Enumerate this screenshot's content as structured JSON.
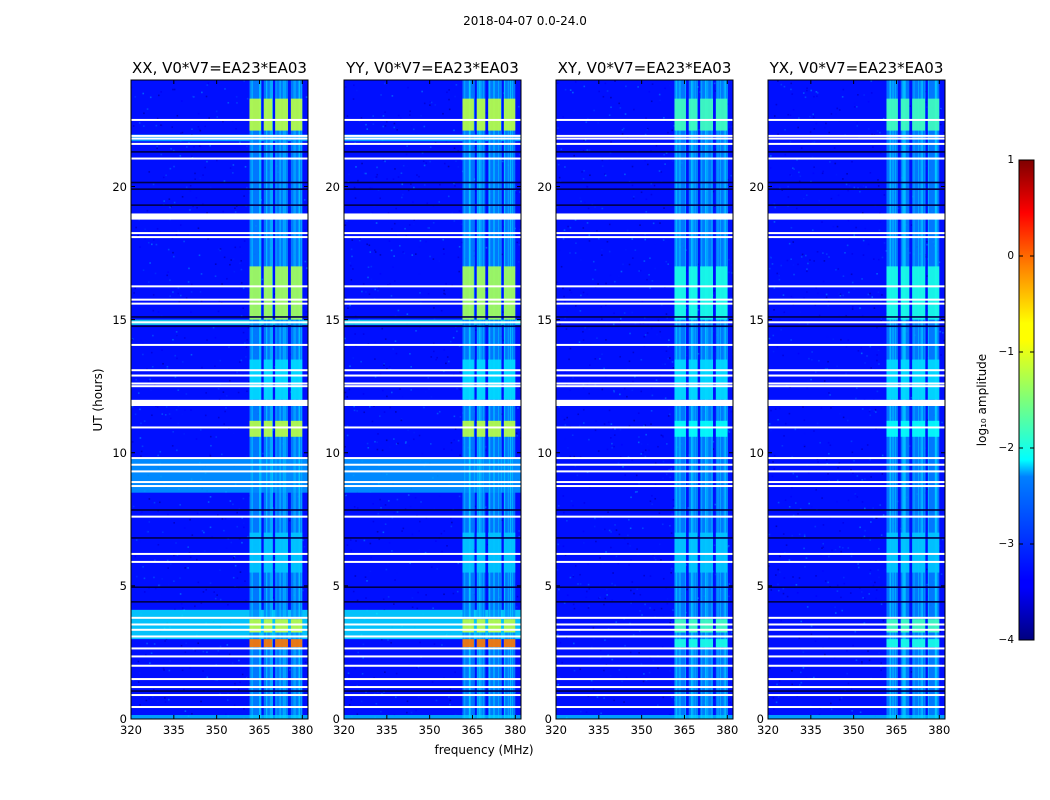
{
  "figure_title": "2018-04-07 0.0-24.0",
  "chart_data": {
    "type": "heatmap",
    "title": "2018-04-07 0.0-24.0",
    "xlabel": "frequency (MHz)",
    "ylabel": "UT (hours)",
    "xlim": [
      320,
      382
    ],
    "ylim": [
      0,
      24
    ],
    "x_ticks": [
      320,
      335,
      350,
      365,
      380
    ],
    "x_tick_labels": [
      "320",
      "335",
      "350",
      "365",
      "380"
    ],
    "y_ticks": [
      0,
      5,
      10,
      15,
      20
    ],
    "y_tick_labels": [
      "0",
      "5",
      "10",
      "15",
      "20"
    ],
    "colorbar": {
      "label": "log₁₀ amplitude",
      "range": [
        -4,
        1
      ],
      "ticks": [
        1,
        0,
        -1,
        -2,
        -3,
        -4
      ],
      "tick_labels": [
        "1",
        "0",
        "−1",
        "−2",
        "−3",
        "−4"
      ],
      "colormap": "jet"
    },
    "panels": [
      {
        "name": "XX",
        "title": "XX, V0*V7=EA23*EA03",
        "diag": true
      },
      {
        "name": "YY",
        "title": "YY, V0*V7=EA23*EA03",
        "diag": true
      },
      {
        "name": "XY",
        "title": "XY, V0*V7=EA23*EA03",
        "diag": false
      },
      {
        "name": "YX",
        "title": "YX, V0*V7=EA23*EA03",
        "diag": false
      }
    ],
    "background_log_amplitude": -3.3,
    "bright_band_mhz": [
      [
        361.5,
        365.5
      ],
      [
        366.5,
        369.5
      ],
      [
        370.5,
        375
      ],
      [
        376,
        380
      ]
    ],
    "flagged_gaps_hours": [
      0.45,
      0.9,
      1.2,
      1.5,
      2.0,
      2.35,
      2.65,
      3.1,
      3.35,
      3.55,
      3.8,
      5.9,
      6.2,
      7.6,
      8.75,
      8.9,
      9.3,
      9.55,
      9.8,
      10.95,
      11.85,
      11.95,
      12.5,
      12.6,
      12.9,
      13.1,
      14.05,
      14.9,
      15.6,
      15.75,
      16.25,
      18.1,
      18.25,
      18.85,
      18.95,
      21.05,
      21.6,
      21.8,
      21.9,
      22.5
    ],
    "dark_rows_hours": [
      1.05,
      4.4,
      4.95,
      6.8,
      7.85,
      14.75,
      15.1,
      19.3,
      19.9,
      20.15,
      21.3
    ],
    "bright_intervals": [
      {
        "t": [
          0.0,
          0.15
        ],
        "level": -2.3,
        "where": "all"
      },
      {
        "t": [
          2.7,
          3.0
        ],
        "level": -2.0,
        "diag_level": -0.2
      },
      {
        "t": [
          3.25,
          3.75
        ],
        "level": -1.8,
        "diag_level": -1.2
      },
      {
        "t": [
          5.5,
          7.0
        ],
        "level": -2.4
      },
      {
        "t": [
          10.6,
          11.2
        ],
        "level": -2.1,
        "diag_level": -1.2
      },
      {
        "t": [
          12.0,
          13.5
        ],
        "level": -2.3
      },
      {
        "t": [
          15.0,
          17.0
        ],
        "level": -2.0,
        "diag_level": -1.3
      },
      {
        "t": [
          22.1,
          23.3
        ],
        "level": -1.8,
        "diag_level": -1.2
      }
    ],
    "wide_rfi_intervals": [
      {
        "t": [
          3.0,
          4.1
        ],
        "level": -2.1,
        "panels": [
          "XX",
          "YY"
        ]
      },
      {
        "t": [
          8.5,
          9.8
        ],
        "level": -2.5,
        "panels": [
          "XX",
          "YY"
        ]
      },
      {
        "t": [
          14.8,
          15.0
        ],
        "level": -2.0,
        "panels": [
          "XX",
          "YY"
        ]
      },
      {
        "t": [
          21.7,
          21.95
        ],
        "level": -2.4,
        "panels": [
          "XX",
          "YY"
        ]
      }
    ]
  }
}
